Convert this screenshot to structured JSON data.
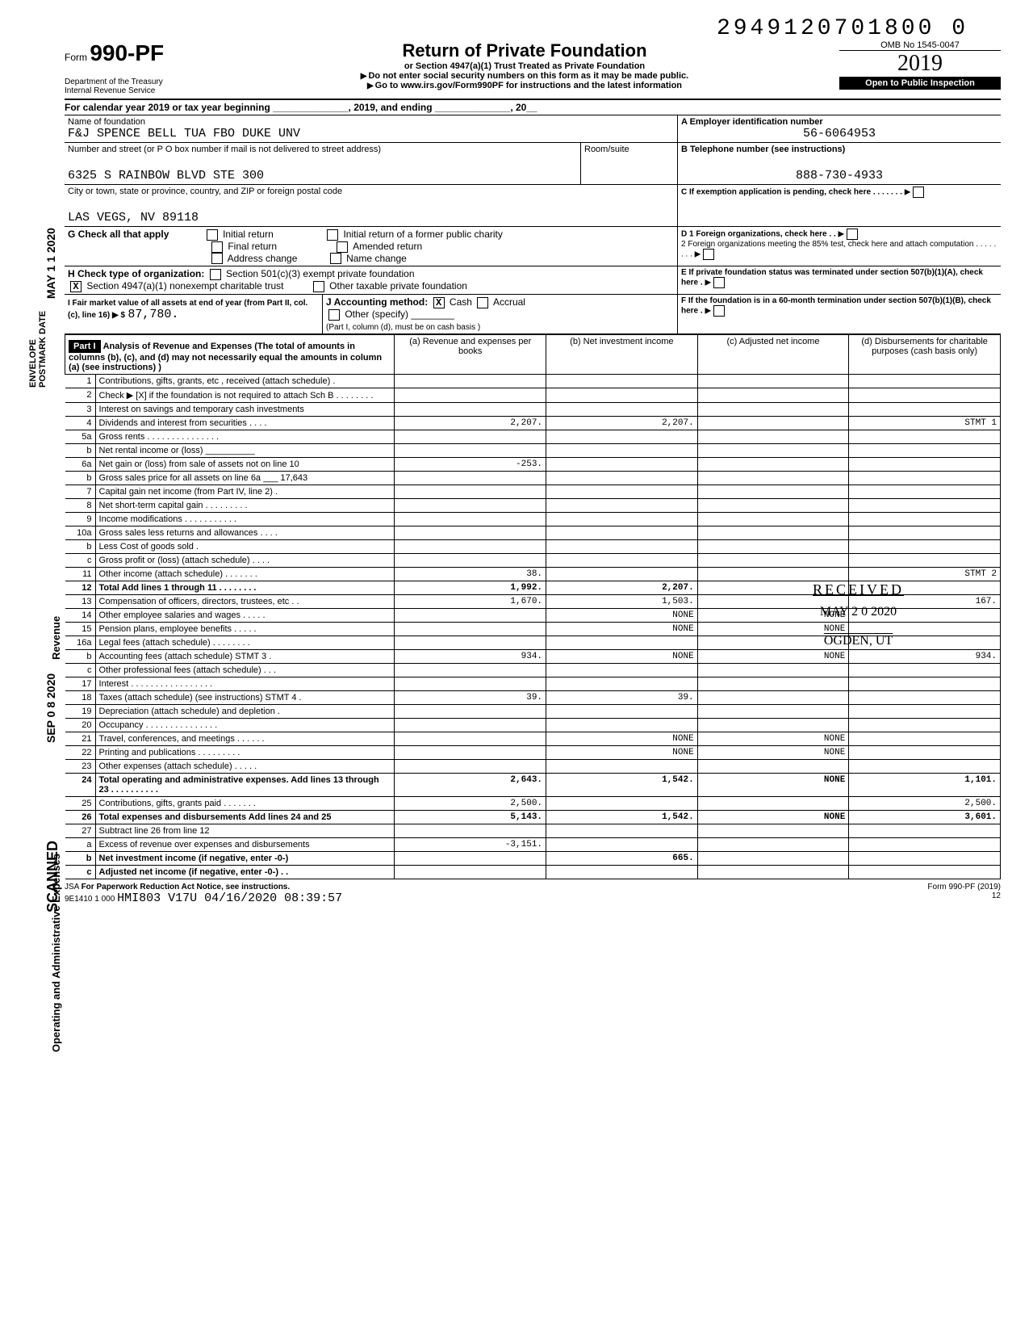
{
  "top_code": "2949120701800 0",
  "form": {
    "label": "Form",
    "number": "990-PF",
    "dept1": "Department of the Treasury",
    "dept2": "Internal Revenue Service"
  },
  "title": {
    "main": "Return of Private Foundation",
    "sub": "or Section 4947(a)(1) Trust Treated as Private Foundation",
    "note1": "Do not enter social security numbers on this form as it may be made public.",
    "note2": "Go to www.irs.gov/Form990PF for instructions and the latest information"
  },
  "omb": {
    "number": "OMB No 1545-0047",
    "year": "2019",
    "inspect": "Open to Public Inspection"
  },
  "calendar": "For calendar year 2019 or tax year beginning ______________, 2019, and ending ______________, 20__",
  "foundation": {
    "name_label": "Name of foundation",
    "name": "F&J SPENCE BELL TUA FBO DUKE UNV",
    "addr_label": "Number and street (or P O box number if mail is not delivered to street address)",
    "addr": "6325 S RAINBOW BLVD STE 300",
    "city_label": "City or town, state or province, country, and ZIP or foreign postal code",
    "city": "LAS VEGS, NV 89118",
    "room_label": "Room/suite"
  },
  "boxA": {
    "label": "A  Employer identification number",
    "value": "56-6064953"
  },
  "boxB": {
    "label": "B  Telephone number (see instructions)",
    "value": "888-730-4933"
  },
  "boxC": "C  If exemption application is pending, check here . . . . . . .",
  "boxD": {
    "d1": "D  1 Foreign organizations, check here . .",
    "d2": "2 Foreign organizations meeting the 85% test, check here and attach computation . . . . . . . ."
  },
  "boxE": "E  If private foundation status was terminated under section 507(b)(1)(A), check here .",
  "boxF": "F  If the foundation is in a 60-month termination under section 507(b)(1)(B), check here .",
  "G": {
    "label": "G Check all that apply",
    "opts": [
      "Initial return",
      "Final return",
      "Address change",
      "Initial return of a former public charity",
      "Amended return",
      "Name change"
    ]
  },
  "H": {
    "label": "H Check type of organization:",
    "opt1": "Section 501(c)(3) exempt private foundation",
    "opt2": "Section 4947(a)(1) nonexempt charitable trust",
    "opt3": "Other taxable private foundation"
  },
  "I": {
    "label": "I  Fair market value of all assets at end of year (from Part II, col. (c), line 16) ▶ $",
    "value": "87,780."
  },
  "J": {
    "label": "J Accounting method:",
    "cash": "Cash",
    "accrual": "Accrual",
    "other": "Other (specify)",
    "note": "(Part I, column (d), must be on cash basis )"
  },
  "part1": {
    "header": "Part I",
    "title": "Analysis of Revenue and Expenses (The total of amounts in columns (b), (c), and (d) may not necessarily equal the amounts in column (a) (see instructions) )",
    "cols": {
      "a": "(a) Revenue and expenses per books",
      "b": "(b) Net investment income",
      "c": "(c) Adjusted net income",
      "d": "(d) Disbursements for charitable purposes (cash basis only)"
    }
  },
  "side_labels": {
    "revenue": "Revenue",
    "expenses": "Operating and Administrative Expenses"
  },
  "lines": [
    {
      "n": "1",
      "label": "Contributions, gifts, grants, etc , received (attach schedule) .",
      "a": "",
      "b": "",
      "c": "",
      "d": ""
    },
    {
      "n": "2",
      "label": "Check ▶ [X] if the foundation is not required to attach Sch B . . . . . . . .",
      "a": "",
      "b": "",
      "c": "",
      "d": ""
    },
    {
      "n": "3",
      "label": "Interest on savings and temporary cash investments",
      "a": "",
      "b": "",
      "c": "",
      "d": ""
    },
    {
      "n": "4",
      "label": "Dividends and interest from securities . . . .",
      "a": "2,207.",
      "b": "2,207.",
      "c": "",
      "d": "STMT 1"
    },
    {
      "n": "5a",
      "label": "Gross rents . . . . . . . . . . . . . . .",
      "a": "",
      "b": "",
      "c": "",
      "d": ""
    },
    {
      "n": "b",
      "label": "Net rental income or (loss) __________",
      "a": "",
      "b": "",
      "c": "",
      "d": ""
    },
    {
      "n": "6a",
      "label": "Net gain or (loss) from sale of assets not on line 10",
      "a": "-253.",
      "b": "",
      "c": "",
      "d": ""
    },
    {
      "n": "b",
      "label": "Gross sales price for all assets on line 6a ___ 17,643",
      "a": "",
      "b": "",
      "c": "",
      "d": ""
    },
    {
      "n": "7",
      "label": "Capital gain net income (from Part IV, line 2) .",
      "a": "",
      "b": "",
      "c": "",
      "d": ""
    },
    {
      "n": "8",
      "label": "Net short-term capital gain . . . . . . . . .",
      "a": "",
      "b": "",
      "c": "",
      "d": ""
    },
    {
      "n": "9",
      "label": "Income modifications . . . . . . . . . . .",
      "a": "",
      "b": "",
      "c": "",
      "d": ""
    },
    {
      "n": "10a",
      "label": "Gross sales less returns and allowances . . . .",
      "a": "",
      "b": "",
      "c": "",
      "d": ""
    },
    {
      "n": "b",
      "label": "Less Cost of goods sold .",
      "a": "",
      "b": "",
      "c": "",
      "d": ""
    },
    {
      "n": "c",
      "label": "Gross profit or (loss) (attach schedule) . . . .",
      "a": "",
      "b": "",
      "c": "",
      "d": ""
    },
    {
      "n": "11",
      "label": "Other income (attach schedule) . . . . . . .",
      "a": "38.",
      "b": "",
      "c": "",
      "d": "STMT 2"
    },
    {
      "n": "12",
      "label": "Total Add lines 1 through 11 . . . . . . . .",
      "a": "1,992.",
      "b": "2,207.",
      "c": "",
      "d": "",
      "bold": true
    },
    {
      "n": "13",
      "label": "Compensation of officers, directors, trustees, etc . .",
      "a": "1,670.",
      "b": "1,503.",
      "c": "",
      "d": "167."
    },
    {
      "n": "14",
      "label": "Other employee salaries and wages . . . . .",
      "a": "",
      "b": "NONE",
      "c": "NONE",
      "d": ""
    },
    {
      "n": "15",
      "label": "Pension plans, employee benefits . . . . .",
      "a": "",
      "b": "NONE",
      "c": "NONE",
      "d": ""
    },
    {
      "n": "16a",
      "label": "Legal fees (attach schedule) . . . . . . . .",
      "a": "",
      "b": "",
      "c": "",
      "d": ""
    },
    {
      "n": "b",
      "label": "Accounting fees (attach schedule) STMT 3 .",
      "a": "934.",
      "b": "NONE",
      "c": "NONE",
      "d": "934."
    },
    {
      "n": "c",
      "label": "Other professional fees (attach schedule) . . .",
      "a": "",
      "b": "",
      "c": "",
      "d": ""
    },
    {
      "n": "17",
      "label": "Interest . . . . . . . . . . . . . . . . .",
      "a": "",
      "b": "",
      "c": "",
      "d": ""
    },
    {
      "n": "18",
      "label": "Taxes (attach schedule) (see instructions) STMT 4 .",
      "a": "39.",
      "b": "39.",
      "c": "",
      "d": ""
    },
    {
      "n": "19",
      "label": "Depreciation (attach schedule) and depletion .",
      "a": "",
      "b": "",
      "c": "",
      "d": ""
    },
    {
      "n": "20",
      "label": "Occupancy . . . . . . . . . . . . . . .",
      "a": "",
      "b": "",
      "c": "",
      "d": ""
    },
    {
      "n": "21",
      "label": "Travel, conferences, and meetings . . . . . .",
      "a": "",
      "b": "NONE",
      "c": "NONE",
      "d": ""
    },
    {
      "n": "22",
      "label": "Printing and publications . . . . . . . . .",
      "a": "",
      "b": "NONE",
      "c": "NONE",
      "d": ""
    },
    {
      "n": "23",
      "label": "Other expenses (attach schedule) . . . . .",
      "a": "",
      "b": "",
      "c": "",
      "d": ""
    },
    {
      "n": "24",
      "label": "Total operating and administrative expenses. Add lines 13 through 23 . . . . . . . . . .",
      "a": "2,643.",
      "b": "1,542.",
      "c": "NONE",
      "d": "1,101.",
      "bold": true
    },
    {
      "n": "25",
      "label": "Contributions, gifts, grants paid . . . . . . .",
      "a": "2,500.",
      "b": "",
      "c": "",
      "d": "2,500."
    },
    {
      "n": "26",
      "label": "Total expenses and disbursements Add lines 24 and 25",
      "a": "5,143.",
      "b": "1,542.",
      "c": "NONE",
      "d": "3,601.",
      "bold": true
    },
    {
      "n": "27",
      "label": "Subtract line 26 from line 12",
      "a": "",
      "b": "",
      "c": "",
      "d": ""
    },
    {
      "n": "a",
      "label": "Excess of revenue over expenses and disbursements",
      "a": "-3,151.",
      "b": "",
      "c": "",
      "d": ""
    },
    {
      "n": "b",
      "label": "Net investment income (if negative, enter -0-)",
      "a": "",
      "b": "665.",
      "c": "",
      "d": "",
      "bold": true
    },
    {
      "n": "c",
      "label": "Adjusted net income (if negative, enter -0-) . .",
      "a": "",
      "b": "",
      "c": "",
      "d": "",
      "bold": true
    }
  ],
  "footer": {
    "jsa": "JSA",
    "pra": "For Paperwork Reduction Act Notice, see instructions.",
    "code": "9E1410 1 000",
    "stamp": "HMI803 V17U 04/16/2020 08:39:57",
    "form": "Form 990-PF (2019)",
    "page": "12"
  },
  "side_stamps": {
    "envelope": "ENVELOPE\nPOSTMARK DATE",
    "date1": "MAY 1 1 2020",
    "scanned": "SCANNED",
    "date2": "SEP 0 8 2020"
  },
  "received": {
    "r1": "RECEIVED",
    "r2": "MAY 2 0 2020",
    "r3": "OGDEN, UT"
  },
  "colors": {
    "text": "#000000",
    "bg": "#ffffff",
    "reverse_bg": "#000000",
    "reverse_fg": "#ffffff"
  },
  "col_widths": {
    "num": 34,
    "label": 336,
    "a": 170,
    "b": 170,
    "c": 170,
    "d": 170
  }
}
